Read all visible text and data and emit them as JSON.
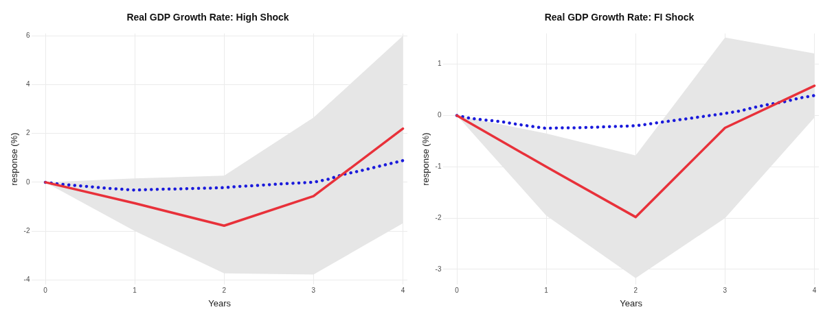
{
  "chart_data": [
    {
      "type": "line",
      "title": "Real GDP Growth Rate: High Shock",
      "xlabel": "Years",
      "ylabel": "response (%)",
      "x": [
        0,
        1,
        2,
        3,
        4
      ],
      "xlim": [
        -0.15,
        4.05
      ],
      "xticks": [
        0,
        1,
        2,
        3,
        4
      ],
      "ylim": [
        -4.2,
        6.1
      ],
      "yticks": [
        -4,
        -2,
        0,
        2,
        4,
        6
      ],
      "grid": true,
      "legend": false,
      "series": [
        {
          "color": "#e8313a",
          "line_style": "solid",
          "values": [
            0,
            -0.86,
            -1.78,
            -0.57,
            2.2
          ],
          "lower": [
            0,
            -2.0,
            -3.73,
            -3.78,
            -1.68
          ],
          "upper": [
            0,
            0.16,
            0.27,
            2.65,
            6.0
          ]
        },
        {
          "color": "#1a1adb",
          "line_style": "dotted",
          "x": [
            0,
            0.17,
            0.33,
            0.5,
            0.67,
            0.83,
            1,
            1.17,
            1.33,
            1.5,
            1.67,
            1.83,
            2,
            2.17,
            2.33,
            2.5,
            2.67,
            2.83,
            3,
            3.17,
            3.33,
            3.5,
            3.67,
            3.83,
            4
          ],
          "values": [
            0,
            -0.08,
            -0.13,
            -0.18,
            -0.24,
            -0.28,
            -0.32,
            -0.3,
            -0.28,
            -0.27,
            -0.25,
            -0.24,
            -0.22,
            -0.17,
            -0.14,
            -0.1,
            -0.06,
            -0.03,
            0,
            0.13,
            0.32,
            0.45,
            0.6,
            0.74,
            0.89
          ]
        }
      ]
    },
    {
      "type": "line",
      "title": "Real GDP Growth Rate: FI Shock",
      "xlabel": "Years",
      "ylabel": "response (%)",
      "x": [
        0,
        1,
        2,
        3,
        4
      ],
      "xlim": [
        -0.15,
        4.05
      ],
      "xticks": [
        0,
        1,
        2,
        3,
        4
      ],
      "ylim": [
        -3.3,
        1.6
      ],
      "yticks": [
        -3,
        -2,
        -1,
        0,
        1
      ],
      "grid": true,
      "legend": false,
      "series": [
        {
          "color": "#e8313a",
          "line_style": "solid",
          "values": [
            0,
            -1.0,
            -1.98,
            -0.24,
            0.58
          ],
          "lower": [
            0,
            -1.95,
            -3.17,
            -2.0,
            -0.04
          ],
          "upper": [
            0,
            -0.35,
            -0.78,
            1.52,
            1.21
          ]
        },
        {
          "color": "#1a1adb",
          "line_style": "dotted",
          "x": [
            0,
            0.17,
            0.33,
            0.5,
            0.67,
            0.83,
            1,
            1.17,
            1.33,
            1.5,
            1.67,
            1.83,
            2,
            2.17,
            2.33,
            2.5,
            2.67,
            2.83,
            3,
            3.17,
            3.33,
            3.5,
            3.67,
            3.83,
            4
          ],
          "values": [
            0,
            -0.06,
            -0.09,
            -0.12,
            -0.17,
            -0.21,
            -0.25,
            -0.24,
            -0.24,
            -0.23,
            -0.22,
            -0.21,
            -0.2,
            -0.16,
            -0.12,
            -0.08,
            -0.04,
            0,
            0.04,
            0.09,
            0.16,
            0.22,
            0.27,
            0.34,
            0.39
          ]
        }
      ]
    }
  ]
}
